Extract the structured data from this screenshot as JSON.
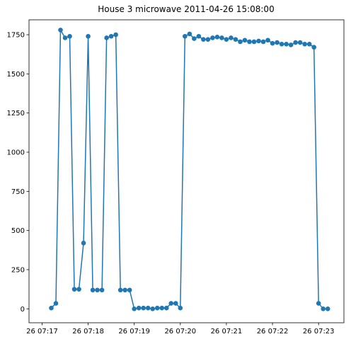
{
  "chart_data": {
    "type": "line",
    "title": "House 3 microwave 2011-04-26 15:08:00",
    "xlabel": "",
    "ylabel": "",
    "x_tick_labels": [
      "26 07:17",
      "26 07:18",
      "26 07:19",
      "26 07:20",
      "26 07:21",
      "26 07:22",
      "26 07:23"
    ],
    "x_tick_values": [
      0,
      60,
      120,
      180,
      240,
      300,
      360
    ],
    "y_tick_labels": [
      "0",
      "250",
      "500",
      "750",
      "1000",
      "1250",
      "1500",
      "1750"
    ],
    "y_tick_values": [
      0,
      250,
      500,
      750,
      1000,
      1250,
      1500,
      1750
    ],
    "xlim": [
      -17,
      393
    ],
    "ylim": [
      -89,
      1845
    ],
    "grid": false,
    "legend": "none",
    "marker": "circle",
    "series_color": "#1f77b4",
    "series": [
      {
        "x": [
          12,
          18,
          24,
          30,
          36,
          42,
          48,
          54,
          60,
          66,
          72,
          78,
          84,
          90,
          96,
          102,
          108,
          114,
          120,
          126,
          132,
          138,
          144,
          150,
          156,
          162,
          168,
          174,
          180,
          186,
          192,
          198,
          204,
          210,
          216,
          222,
          228,
          234,
          240,
          246,
          252,
          258,
          264,
          270,
          276,
          282,
          288,
          294,
          300,
          306,
          312,
          318,
          324,
          330,
          336,
          342,
          348,
          354,
          360,
          366,
          372
        ],
        "y": [
          5,
          35,
          1780,
          1730,
          1740,
          125,
          125,
          420,
          1740,
          120,
          120,
          120,
          1730,
          1740,
          1750,
          120,
          120,
          120,
          0,
          5,
          5,
          5,
          0,
          5,
          5,
          5,
          35,
          35,
          5,
          1740,
          1755,
          1725,
          1740,
          1720,
          1720,
          1730,
          1735,
          1730,
          1720,
          1730,
          1720,
          1705,
          1715,
          1705,
          1705,
          1710,
          1705,
          1715,
          1695,
          1700,
          1690,
          1690,
          1685,
          1700,
          1700,
          1690,
          1690,
          1670,
          35,
          0,
          0
        ]
      }
    ]
  }
}
